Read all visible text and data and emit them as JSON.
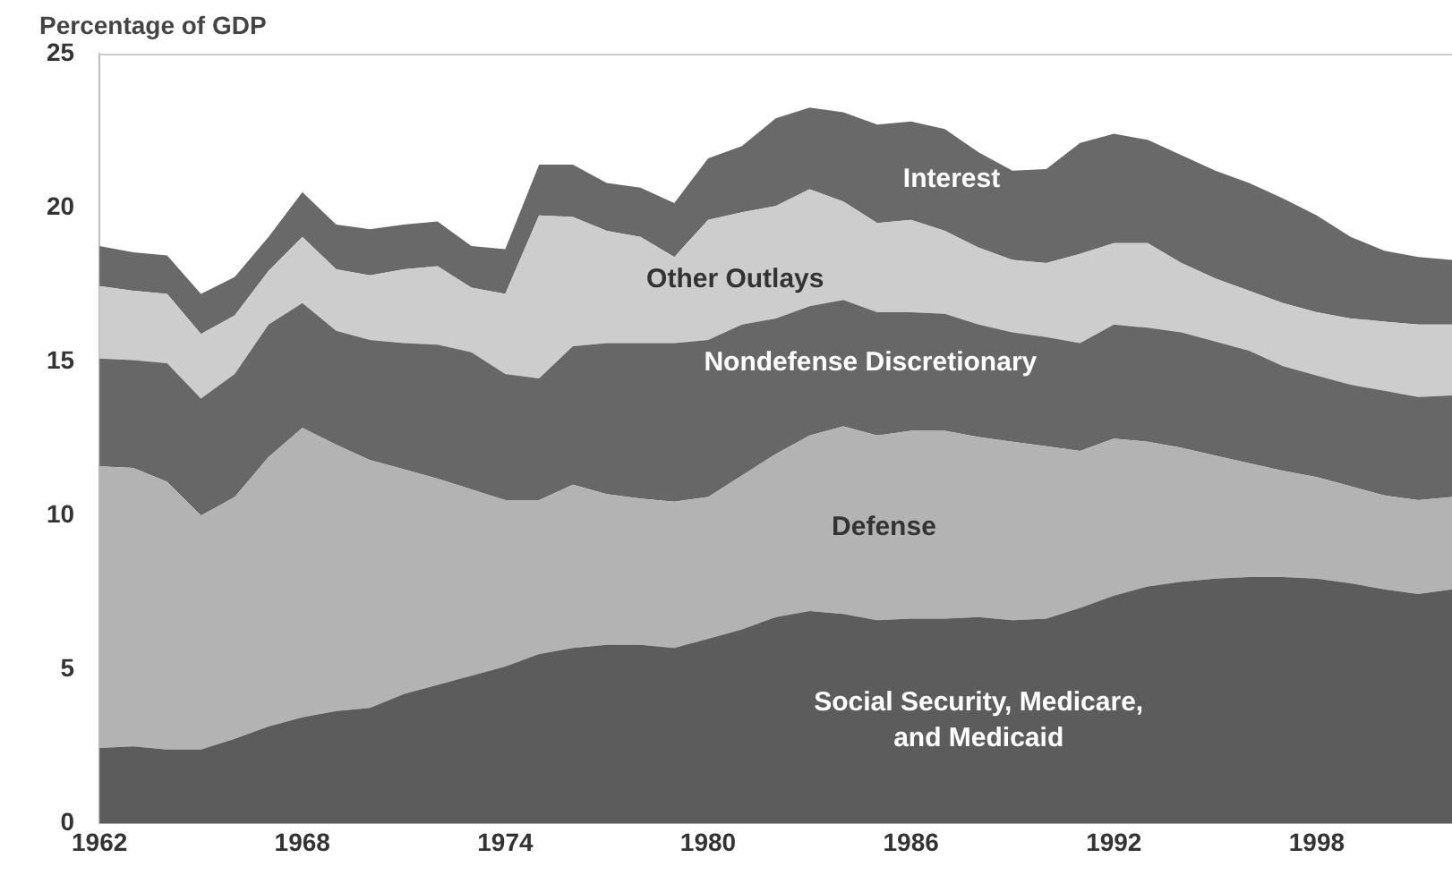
{
  "chart_data": {
    "type": "area",
    "ylabel": "Percentage of GDP",
    "stacked": true,
    "legend": false,
    "grid": false,
    "x": [
      1962,
      1963,
      1964,
      1965,
      1966,
      1967,
      1968,
      1969,
      1970,
      1971,
      1972,
      1973,
      1974,
      1975,
      1976,
      1977,
      1978,
      1979,
      1980,
      1981,
      1982,
      1983,
      1984,
      1985,
      1986,
      1987,
      1988,
      1989,
      1990,
      1991,
      1992,
      1993,
      1994,
      1995,
      1996,
      1997,
      1998,
      1999,
      2000,
      2001,
      2002
    ],
    "xlim": [
      1962,
      2002
    ],
    "xticks": [
      1962,
      1968,
      1974,
      1980,
      1986,
      1992,
      1998
    ],
    "ylim": [
      0,
      25
    ],
    "yticks": [
      0,
      5,
      10,
      15,
      20,
      25
    ],
    "series": [
      {
        "name": "Social Security, Medicare, and Medicaid",
        "color": "#5c5c5c",
        "values": [
          2.45,
          2.5,
          2.4,
          2.4,
          2.75,
          3.15,
          3.45,
          3.65,
          3.75,
          4.2,
          4.5,
          4.8,
          5.1,
          5.5,
          5.7,
          5.8,
          5.8,
          5.7,
          6.0,
          6.3,
          6.7,
          6.9,
          6.8,
          6.6,
          6.65,
          6.65,
          6.7,
          6.6,
          6.65,
          7.0,
          7.4,
          7.7,
          7.85,
          7.95,
          8.0,
          8.0,
          7.95,
          7.8,
          7.6,
          7.45,
          7.6
        ]
      },
      {
        "name": "Defense",
        "color": "#b3b3b3",
        "values": [
          9.15,
          9.05,
          8.7,
          7.6,
          7.85,
          8.75,
          9.4,
          8.65,
          8.05,
          7.3,
          6.7,
          6.05,
          5.4,
          5.0,
          5.3,
          4.9,
          4.75,
          4.75,
          4.6,
          5.0,
          5.3,
          5.7,
          6.1,
          6.0,
          6.1,
          6.1,
          5.85,
          5.8,
          5.6,
          5.1,
          5.1,
          4.7,
          4.35,
          4.0,
          3.7,
          3.45,
          3.3,
          3.15,
          3.05,
          3.05,
          3.0
        ]
      },
      {
        "name": "Nondefense Discretionary",
        "color": "#676767",
        "values": [
          3.5,
          3.5,
          3.85,
          3.8,
          4.0,
          4.3,
          4.05,
          3.7,
          3.9,
          4.1,
          4.35,
          4.45,
          4.1,
          3.95,
          4.5,
          4.9,
          5.05,
          5.15,
          5.1,
          4.9,
          4.4,
          4.2,
          4.1,
          4.0,
          3.85,
          3.8,
          3.65,
          3.55,
          3.55,
          3.5,
          3.7,
          3.7,
          3.75,
          3.7,
          3.65,
          3.4,
          3.3,
          3.3,
          3.4,
          3.35,
          3.3
        ]
      },
      {
        "name": "Other Outlays",
        "color": "#cdcdcd",
        "values": [
          2.35,
          2.25,
          2.25,
          2.1,
          1.9,
          1.75,
          2.15,
          2.0,
          2.1,
          2.4,
          2.55,
          2.1,
          2.6,
          5.3,
          4.2,
          3.65,
          3.45,
          2.8,
          3.9,
          3.65,
          3.65,
          3.8,
          3.2,
          2.9,
          3.0,
          2.7,
          2.5,
          2.35,
          2.4,
          2.9,
          2.65,
          2.75,
          2.25,
          2.05,
          1.95,
          2.05,
          2.05,
          2.15,
          2.25,
          2.35,
          2.3
        ]
      },
      {
        "name": "Interest",
        "color": "#696969",
        "values": [
          1.3,
          1.25,
          1.25,
          1.3,
          1.25,
          1.1,
          1.45,
          1.45,
          1.5,
          1.45,
          1.45,
          1.35,
          1.45,
          1.65,
          1.7,
          1.55,
          1.6,
          1.75,
          2.0,
          2.15,
          2.85,
          2.65,
          2.9,
          3.2,
          3.2,
          3.3,
          3.1,
          2.9,
          3.05,
          3.6,
          3.55,
          3.35,
          3.5,
          3.5,
          3.5,
          3.4,
          3.15,
          2.65,
          2.3,
          2.2,
          2.1
        ]
      }
    ]
  }
}
